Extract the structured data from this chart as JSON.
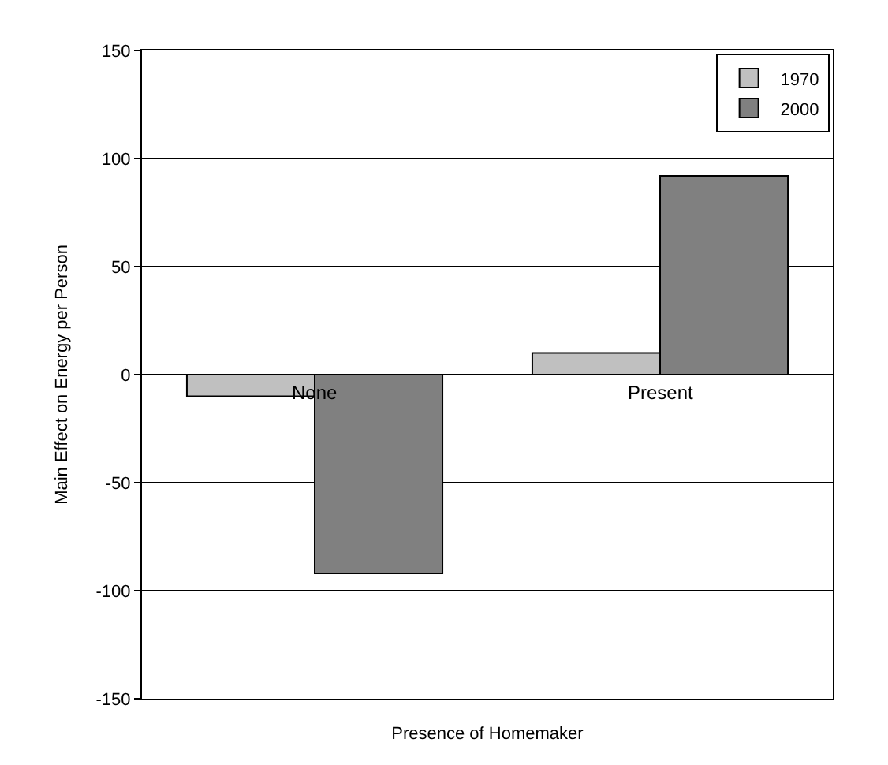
{
  "chart_data": {
    "type": "bar",
    "xlabel": "Presence of Homemaker",
    "ylabel": "Main Effect on Energy per Person",
    "categories": [
      "None",
      "Present"
    ],
    "series": [
      {
        "name": "1970",
        "color": "#c0c0c0",
        "values": [
          -10,
          10
        ]
      },
      {
        "name": "2000",
        "color": "#808080",
        "values": [
          -92,
          92
        ]
      }
    ],
    "ylim": [
      -150,
      150
    ],
    "yticks": [
      -150,
      -100,
      -50,
      0,
      50,
      100,
      150
    ],
    "grid": "y",
    "legend": "top right"
  }
}
